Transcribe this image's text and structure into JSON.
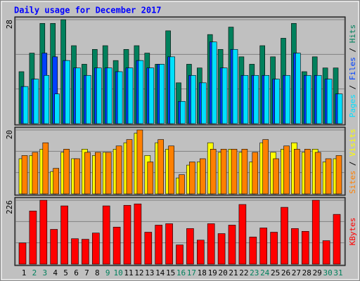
{
  "chart_data": [
    {
      "type": "bar",
      "title": "Daily usage for December 2017",
      "ylim": [
        0,
        28
      ],
      "yticks": [
        28
      ],
      "legend_separator": " / ",
      "series": [
        {
          "name": "Hits",
          "color": "#00805c",
          "values": [
            14,
            19,
            27,
            27,
            28,
            21,
            16,
            20,
            21,
            17,
            20,
            21,
            19,
            16,
            25,
            11,
            16,
            15,
            24,
            20,
            26,
            18,
            16,
            21,
            18,
            23,
            27,
            14,
            18,
            15,
            15
          ]
        },
        {
          "name": "Files",
          "color": "#0040ff",
          "values": [
            10,
            12,
            19,
            18,
            17,
            15,
            13,
            15,
            15,
            14,
            15,
            17,
            15,
            16,
            18,
            6,
            13,
            11,
            22,
            15,
            20,
            13,
            13,
            13,
            12,
            13,
            19,
            13,
            13,
            12,
            8
          ]
        },
        {
          "name": "Pages",
          "color": "#00e0ff",
          "values": [
            10,
            12,
            13,
            8,
            17,
            15,
            13,
            15,
            15,
            14,
            15,
            17,
            15,
            16,
            18,
            6,
            13,
            11,
            22,
            15,
            20,
            13,
            13,
            13,
            12,
            13,
            19,
            13,
            13,
            12,
            8
          ]
        }
      ]
    },
    {
      "type": "bar",
      "ylim": [
        0,
        20
      ],
      "yticks": [
        20
      ],
      "legend_separator": " / ",
      "series": [
        {
          "name": "Visits",
          "color": "#ffff00",
          "values": [
            11,
            12,
            14,
            7,
            13,
            11,
            14,
            12,
            13,
            14,
            16,
            19,
            12,
            16,
            14,
            5,
            9,
            10,
            16,
            13,
            14,
            13,
            10,
            16,
            13,
            14,
            16,
            13,
            14,
            10,
            11
          ]
        },
        {
          "name": "Sites",
          "color": "#ff8000",
          "values": [
            12,
            13,
            16,
            8,
            14,
            11,
            13,
            13,
            13,
            15,
            17,
            20,
            10,
            17,
            15,
            6,
            10,
            11,
            14,
            14,
            14,
            14,
            13,
            17,
            11,
            15,
            14,
            14,
            13,
            11,
            12
          ]
        }
      ]
    },
    {
      "type": "bar",
      "ylim": [
        0,
        226
      ],
      "yticks": [
        226
      ],
      "categories": [
        1,
        2,
        3,
        4,
        5,
        6,
        7,
        8,
        9,
        10,
        11,
        12,
        13,
        14,
        15,
        16,
        17,
        18,
        19,
        20,
        21,
        22,
        23,
        24,
        25,
        26,
        27,
        28,
        29,
        30,
        31
      ],
      "category_colors": [
        "#000000",
        "#00805c",
        "#00805c",
        "#000000",
        "#000000",
        "#000000",
        "#000000",
        "#000000",
        "#00805c",
        "#00805c",
        "#000000",
        "#000000",
        "#000000",
        "#000000",
        "#000000",
        "#00805c",
        "#00805c",
        "#000000",
        "#000000",
        "#000000",
        "#000000",
        "#000000",
        "#00805c",
        "#00805c",
        "#000000",
        "#000000",
        "#000000",
        "#000000",
        "#000000",
        "#00805c",
        "#00805c"
      ],
      "series": [
        {
          "name": "KBytes",
          "color": "#ff0000",
          "values": [
            75,
            188,
            226,
            123,
            206,
            90,
            88,
            110,
            206,
            131,
            208,
            213,
            113,
            138,
            143,
            68,
            126,
            85,
            143,
            108,
            138,
            211,
            96,
            128,
            113,
            201,
            126,
            116,
            226,
            83,
            176
          ]
        }
      ]
    }
  ]
}
